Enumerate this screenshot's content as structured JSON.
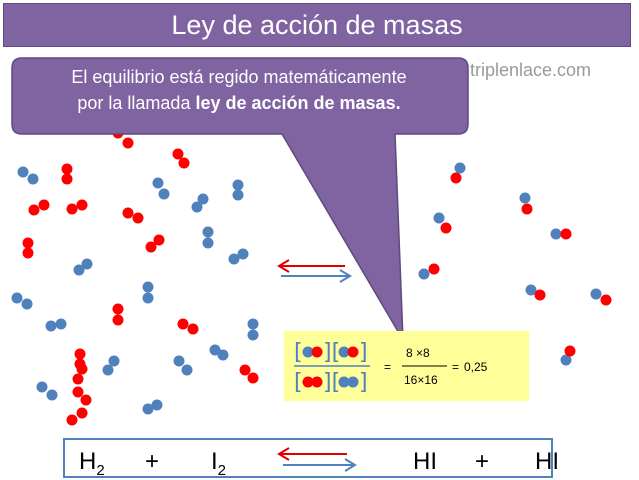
{
  "title": "Ley de acción de masas",
  "watermark": "triplenlace.com",
  "callout": {
    "line1": "El equilibrio está regido matemáticamente",
    "line2_prefix": "por la llamada ",
    "bold": "ley de acción de masas."
  },
  "formula": {
    "numerator": "8 ×8",
    "denominator": "16×16",
    "eq1": "=",
    "eq2": "=",
    "result": "0,25"
  },
  "equation": {
    "reactant1": "H",
    "reactant1_sub": "2",
    "plus1": "+",
    "reactant2": "I",
    "reactant2_sub": "2",
    "product1": "HI",
    "plus2": "+",
    "product2": "HI"
  },
  "colors": {
    "title_bg": "#8064a2",
    "callout_bg": "#8064a2",
    "hydrogen_blue": "#4f81bd",
    "iodine_red": "#ff0000",
    "formula_bg": "#ffff99"
  }
}
